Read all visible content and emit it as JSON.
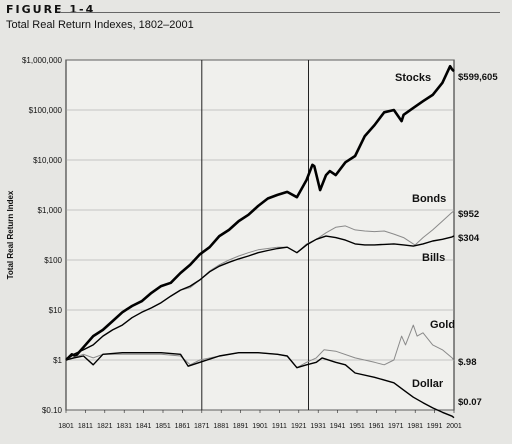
{
  "figure": {
    "label": "FIGURE 1-4",
    "title": "Total Real Return Indexes, 1802–2001"
  },
  "chart_data": {
    "type": "line",
    "title": "Total Real Return Indexes, 1802–2001",
    "xlabel": "",
    "ylabel": "Total Real Return Index",
    "xlim": [
      1801,
      2001
    ],
    "ylim": [
      0.1,
      1000000
    ],
    "yscale": "log",
    "yticks": [
      0.1,
      1,
      10,
      100,
      1000,
      10000,
      100000,
      1000000
    ],
    "ytick_labels": [
      "$0.10",
      "$1",
      "$10",
      "$100",
      "$1,000",
      "$10,000",
      "$100,000",
      "$1,000,000"
    ],
    "xticks": [
      1801,
      1811,
      1821,
      1831,
      1841,
      1851,
      1861,
      1871,
      1881,
      1891,
      1901,
      1911,
      1921,
      1931,
      1941,
      1951,
      1961,
      1971,
      1981,
      1991,
      2001
    ],
    "grid": "horizontal",
    "vlines": [
      1871,
      1926
    ],
    "series": [
      {
        "name": "Stocks",
        "end_label": "$599,605",
        "color": "#000000",
        "style": "thick",
        "x": [
          1801,
          1804,
          1806,
          1810,
          1815,
          1820,
          1825,
          1830,
          1835,
          1840,
          1845,
          1850,
          1855,
          1860,
          1865,
          1870,
          1875,
          1880,
          1885,
          1890,
          1895,
          1900,
          1905,
          1910,
          1915,
          1920,
          1925,
          1928,
          1929,
          1932,
          1935,
          1937,
          1940,
          1945,
          1950,
          1955,
          1960,
          1965,
          1970,
          1974,
          1975,
          1980,
          1985,
          1990,
          1995,
          1999,
          2000,
          2001
        ],
        "y": [
          1.0,
          1.3,
          1.2,
          1.8,
          3.0,
          4.0,
          6.0,
          9.0,
          12.0,
          15.0,
          22.0,
          30.0,
          35.0,
          55.0,
          80.0,
          130.0,
          180.0,
          300.0,
          400.0,
          600.0,
          800.0,
          1200.0,
          1700.0,
          2000.0,
          2300.0,
          1800.0,
          4000.0,
          8000.0,
          7500.0,
          2500.0,
          5000.0,
          6000.0,
          5000.0,
          9000.0,
          12000.0,
          30000.0,
          50000.0,
          90000.0,
          100000.0,
          60000.0,
          80000.0,
          110000.0,
          150000.0,
          200000.0,
          350000.0,
          750000.0,
          650000.0,
          599605.0
        ]
      },
      {
        "name": "Bonds",
        "end_label": "$952",
        "color": "#8a8a8a",
        "style": "thin",
        "x": [
          1801,
          1805,
          1810,
          1815,
          1820,
          1825,
          1830,
          1835,
          1840,
          1845,
          1850,
          1855,
          1860,
          1865,
          1870,
          1875,
          1880,
          1885,
          1890,
          1895,
          1900,
          1905,
          1910,
          1915,
          1920,
          1925,
          1930,
          1935,
          1940,
          1945,
          1950,
          1955,
          1960,
          1965,
          1970,
          1975,
          1980,
          1981,
          1985,
          1990,
          1995,
          2000,
          2001
        ],
        "y": [
          1.0,
          1.3,
          1.6,
          2.0,
          3.0,
          4.0,
          5.0,
          7.0,
          9.0,
          11.0,
          14.0,
          19.0,
          25.0,
          28.0,
          40.0,
          60.0,
          80.0,
          100.0,
          120.0,
          140.0,
          160.0,
          170.0,
          180.0,
          180.0,
          140.0,
          210.0,
          260.0,
          350.0,
          450.0,
          480.0,
          400.0,
          380.0,
          370.0,
          380.0,
          330.0,
          280.0,
          210.0,
          200.0,
          280.0,
          400.0,
          600.0,
          900.0,
          952.0
        ]
      },
      {
        "name": "Bills",
        "end_label": "$304",
        "color": "#000000",
        "style": "medium",
        "x": [
          1801,
          1805,
          1810,
          1815,
          1820,
          1825,
          1830,
          1835,
          1840,
          1845,
          1850,
          1855,
          1860,
          1865,
          1870,
          1875,
          1880,
          1885,
          1890,
          1895,
          1900,
          1905,
          1910,
          1915,
          1920,
          1925,
          1930,
          1935,
          1940,
          1945,
          1950,
          1955,
          1960,
          1965,
          1970,
          1975,
          1980,
          1985,
          1990,
          1995,
          2000,
          2001
        ],
        "y": [
          1.0,
          1.3,
          1.6,
          2.0,
          3.0,
          4.0,
          5.0,
          7.0,
          9.0,
          11.0,
          14.0,
          19.0,
          25.0,
          30.0,
          40.0,
          58.0,
          75.0,
          90.0,
          105.0,
          120.0,
          140.0,
          155.0,
          170.0,
          180.0,
          140.0,
          200.0,
          260.0,
          300.0,
          280.0,
          250.0,
          210.0,
          200.0,
          200.0,
          205.0,
          210.0,
          200.0,
          190.0,
          210.0,
          240.0,
          260.0,
          290.0,
          304.0
        ]
      },
      {
        "name": "Gold",
        "end_label": "$.98",
        "color": "#8a8a8a",
        "style": "thin",
        "x": [
          1801,
          1810,
          1815,
          1820,
          1830,
          1840,
          1850,
          1860,
          1865,
          1870,
          1880,
          1890,
          1900,
          1910,
          1915,
          1920,
          1925,
          1930,
          1934,
          1940,
          1950,
          1960,
          1965,
          1970,
          1974,
          1976,
          1980,
          1982,
          1985,
          1990,
          1995,
          2000,
          2001
        ],
        "y": [
          1.0,
          1.3,
          1.1,
          1.3,
          1.3,
          1.3,
          1.3,
          1.2,
          0.8,
          1.0,
          1.2,
          1.4,
          1.4,
          1.3,
          1.2,
          0.7,
          0.9,
          1.1,
          1.6,
          1.5,
          1.1,
          0.9,
          0.8,
          1.0,
          3.0,
          2.0,
          5.0,
          3.0,
          3.5,
          2.0,
          1.6,
          1.1,
          0.98
        ]
      },
      {
        "name": "Dollar",
        "end_label": "$0.07",
        "color": "#000000",
        "style": "medium",
        "x": [
          1801,
          1805,
          1810,
          1815,
          1820,
          1830,
          1840,
          1850,
          1860,
          1864,
          1870,
          1880,
          1890,
          1900,
          1910,
          1915,
          1920,
          1925,
          1930,
          1933,
          1940,
          1945,
          1950,
          1960,
          1970,
          1975,
          1980,
          1985,
          1990,
          1995,
          2000,
          2001
        ],
        "y": [
          1.0,
          1.1,
          1.2,
          0.8,
          1.3,
          1.4,
          1.4,
          1.4,
          1.3,
          0.75,
          0.9,
          1.2,
          1.4,
          1.4,
          1.3,
          1.2,
          0.7,
          0.8,
          0.9,
          1.1,
          0.9,
          0.8,
          0.55,
          0.45,
          0.35,
          0.25,
          0.18,
          0.14,
          0.11,
          0.09,
          0.075,
          0.07
        ]
      }
    ]
  }
}
